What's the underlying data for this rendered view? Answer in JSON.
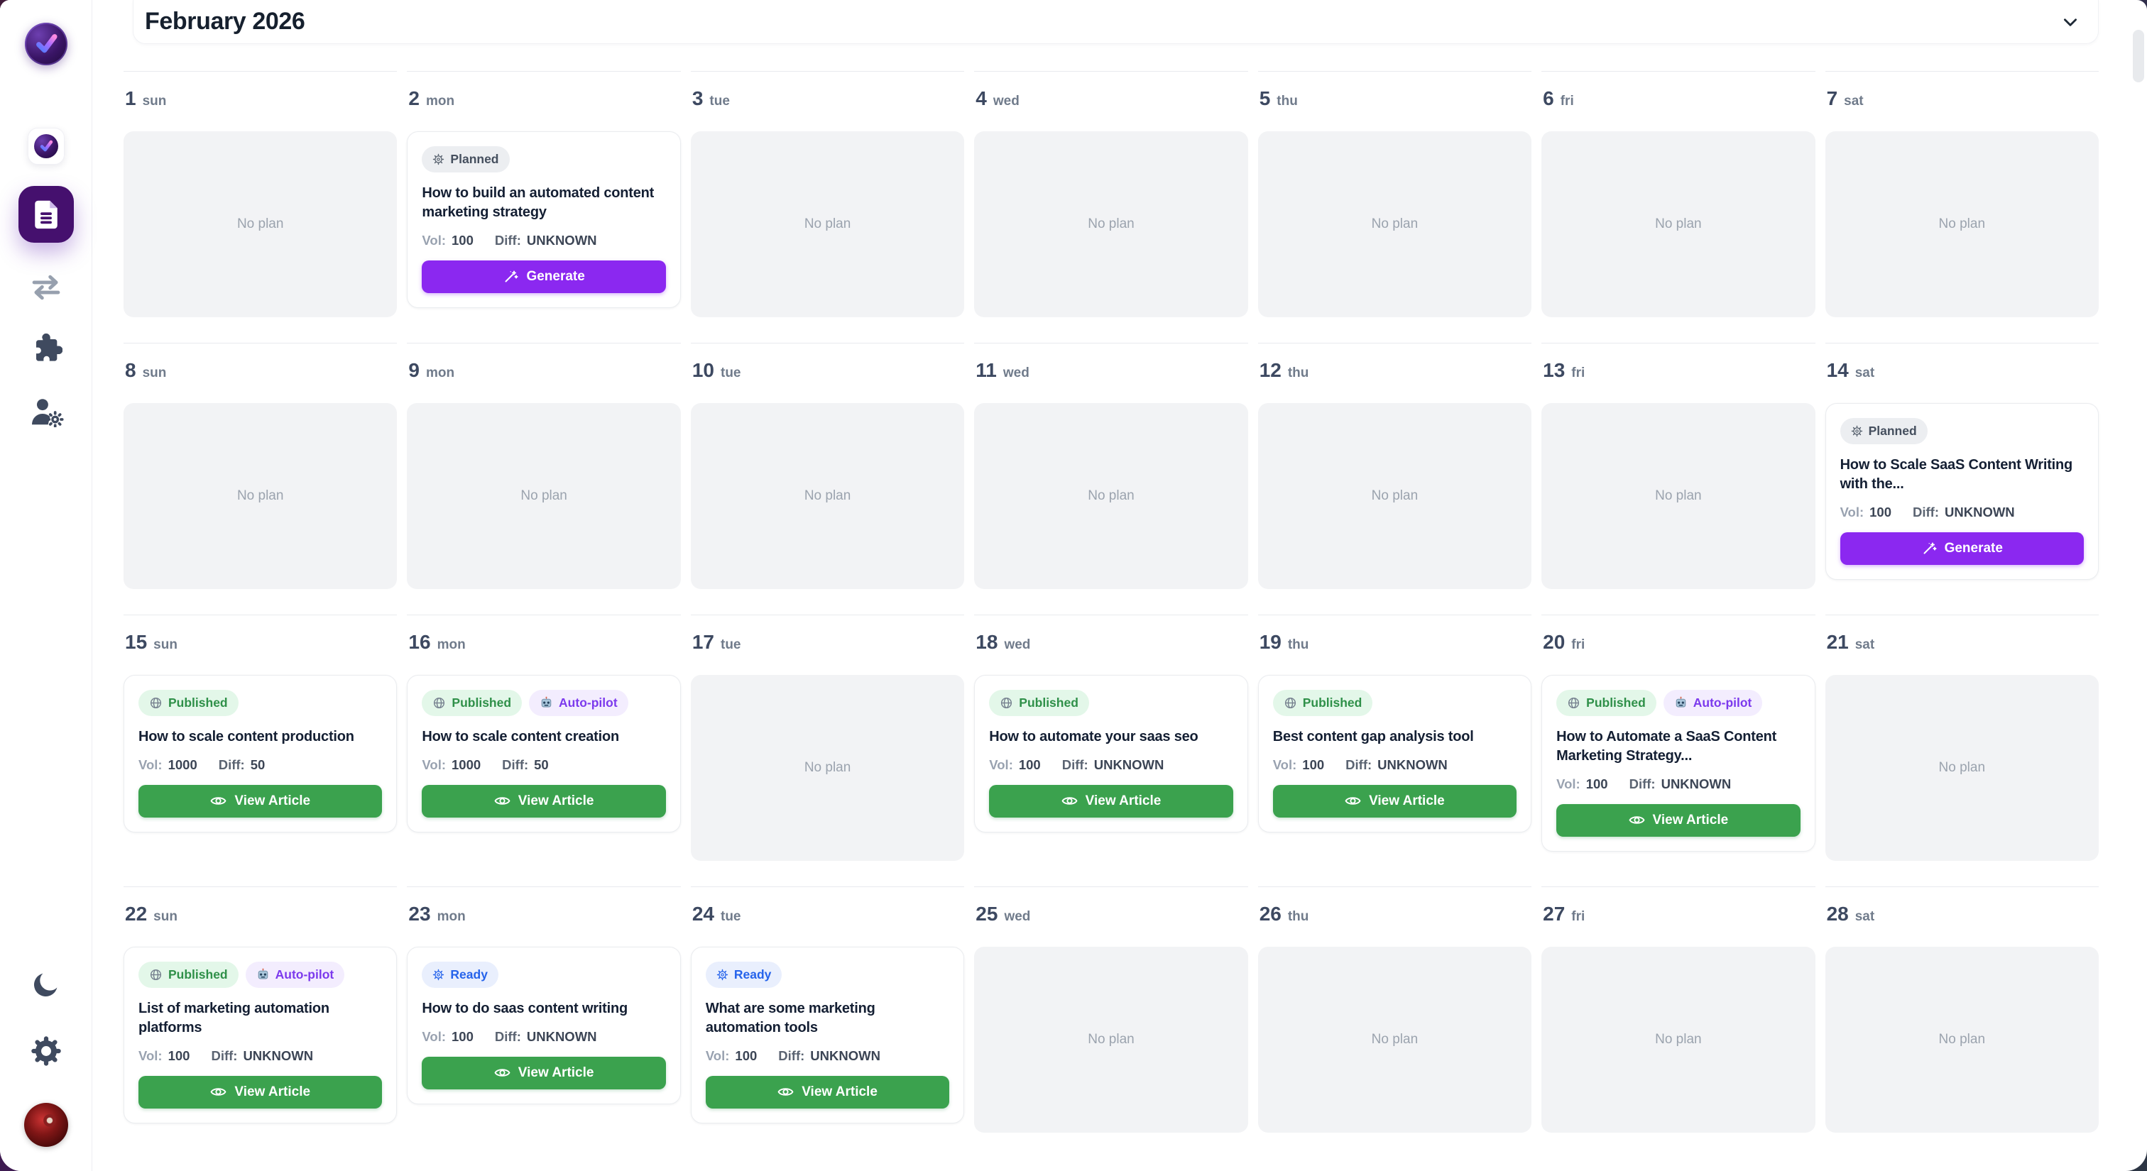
{
  "header": {
    "title": "February 2026"
  },
  "sidebar": {
    "items": [
      {
        "name": "app-logo",
        "icon": "logo-check-icon",
        "interactable": false
      },
      {
        "name": "nav-workspace",
        "icon": "check-mini-icon",
        "interactable": true
      },
      {
        "name": "nav-content-plan",
        "icon": "document-icon",
        "active": true,
        "interactable": true
      },
      {
        "name": "nav-transfer",
        "icon": "swap-arrows-icon",
        "interactable": true
      },
      {
        "name": "nav-integrations",
        "icon": "puzzle-icon",
        "interactable": true
      },
      {
        "name": "nav-user-settings",
        "icon": "user-gear-icon",
        "interactable": true
      }
    ],
    "footer_items": [
      {
        "name": "theme-toggle",
        "icon": "moon-icon"
      },
      {
        "name": "settings",
        "icon": "gear-icon"
      },
      {
        "name": "account-avatar",
        "icon": "avatar-photo"
      }
    ]
  },
  "colors": {
    "accent_purple": "#8b28f0",
    "active_nav_purple": "#45106e",
    "green_button": "#3ba24e",
    "published_text": "#2f9049",
    "ready_text": "#2563eb",
    "autopilot_text": "#7c3aed",
    "no_plan_bg": "#f2f3f5"
  },
  "calendar": {
    "no_plan_label": "No plan",
    "meta_labels": {
      "vol": "Vol:",
      "diff": "Diff:"
    },
    "badge_defs": {
      "planned": {
        "label": "Planned",
        "icon": "gear-icon"
      },
      "published": {
        "label": "Published",
        "icon": "globe-icon"
      },
      "autopilot": {
        "label": "Auto-pilot",
        "icon": "robot-icon"
      },
      "ready": {
        "label": "Ready",
        "icon": "gear-icon"
      }
    },
    "action_defs": {
      "generate": {
        "label": "Generate",
        "icon": "wand-icon"
      },
      "view": {
        "label": "View Article",
        "icon": "eye-icon"
      }
    },
    "weeks": [
      [
        {
          "num": "1",
          "dow": "sun"
        },
        {
          "num": "2",
          "dow": "mon",
          "card": {
            "badges": [
              "planned"
            ],
            "title": "How to build an automated content marketing strategy",
            "vol": "100",
            "diff": "UNKNOWN",
            "action": "generate"
          }
        },
        {
          "num": "3",
          "dow": "tue"
        },
        {
          "num": "4",
          "dow": "wed"
        },
        {
          "num": "5",
          "dow": "thu"
        },
        {
          "num": "6",
          "dow": "fri"
        },
        {
          "num": "7",
          "dow": "sat"
        }
      ],
      [
        {
          "num": "8",
          "dow": "sun"
        },
        {
          "num": "9",
          "dow": "mon"
        },
        {
          "num": "10",
          "dow": "tue"
        },
        {
          "num": "11",
          "dow": "wed"
        },
        {
          "num": "12",
          "dow": "thu"
        },
        {
          "num": "13",
          "dow": "fri"
        },
        {
          "num": "14",
          "dow": "sat",
          "card": {
            "badges": [
              "planned"
            ],
            "title": "How to Scale SaaS Content Writing with the...",
            "vol": "100",
            "diff": "UNKNOWN",
            "action": "generate"
          }
        }
      ],
      [
        {
          "num": "15",
          "dow": "sun",
          "card": {
            "badges": [
              "published"
            ],
            "title": "How to scale content production",
            "vol": "1000",
            "diff": "50",
            "action": "view"
          }
        },
        {
          "num": "16",
          "dow": "mon",
          "card": {
            "badges": [
              "published",
              "autopilot"
            ],
            "title": "How to scale content creation",
            "vol": "1000",
            "diff": "50",
            "action": "view"
          }
        },
        {
          "num": "17",
          "dow": "tue"
        },
        {
          "num": "18",
          "dow": "wed",
          "card": {
            "badges": [
              "published"
            ],
            "title": "How to automate your saas seo",
            "vol": "100",
            "diff": "UNKNOWN",
            "action": "view"
          }
        },
        {
          "num": "19",
          "dow": "thu",
          "card": {
            "badges": [
              "published"
            ],
            "title": "Best content gap analysis tool",
            "vol": "100",
            "diff": "UNKNOWN",
            "action": "view"
          }
        },
        {
          "num": "20",
          "dow": "fri",
          "card": {
            "badges": [
              "published",
              "autopilot"
            ],
            "title": "How to Automate a SaaS Content Marketing Strategy...",
            "vol": "100",
            "diff": "UNKNOWN",
            "action": "view"
          }
        },
        {
          "num": "21",
          "dow": "sat"
        }
      ],
      [
        {
          "num": "22",
          "dow": "sun",
          "card": {
            "badges": [
              "published",
              "autopilot"
            ],
            "title": "List of marketing automation platforms",
            "vol": "100",
            "diff": "UNKNOWN",
            "action": "view"
          }
        },
        {
          "num": "23",
          "dow": "mon",
          "card": {
            "badges": [
              "ready"
            ],
            "title": "How to do saas content writing",
            "vol": "100",
            "diff": "UNKNOWN",
            "action": "view"
          }
        },
        {
          "num": "24",
          "dow": "tue",
          "card": {
            "badges": [
              "ready"
            ],
            "title": "What are some marketing automation tools",
            "vol": "100",
            "diff": "UNKNOWN",
            "action": "view"
          }
        },
        {
          "num": "25",
          "dow": "wed"
        },
        {
          "num": "26",
          "dow": "thu"
        },
        {
          "num": "27",
          "dow": "fri"
        },
        {
          "num": "28",
          "dow": "sat"
        }
      ]
    ]
  }
}
